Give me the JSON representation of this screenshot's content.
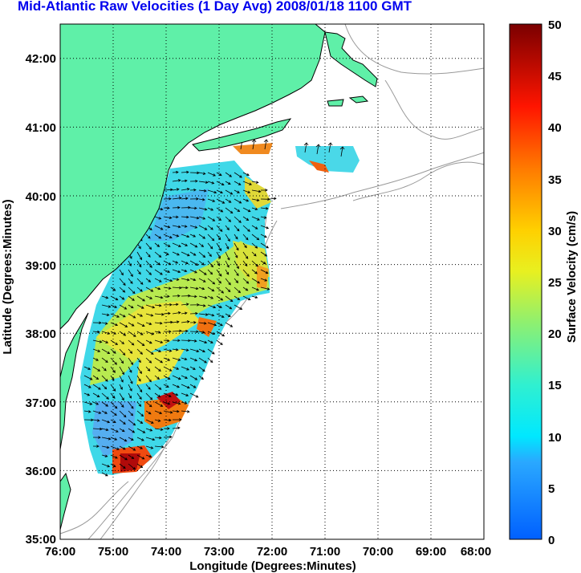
{
  "title": "Mid-Atlantic Raw Velocities (1 Day Avg) 2008/01/18 1100 GMT",
  "map": {
    "xlabel": "Longitude (Degrees:Minutes)",
    "ylabel": "Latitude (Degrees:Minutes)",
    "x_ticks": [
      "76:00",
      "75:00",
      "74:00",
      "73:00",
      "72:00",
      "71:00",
      "70:00",
      "69:00",
      "68:00"
    ],
    "y_ticks": [
      "42:00",
      "41:00",
      "40:00",
      "39:00",
      "38:00",
      "37:00",
      "36:00",
      "35:00"
    ],
    "lon_range": [
      -76,
      -68
    ],
    "lat_range": [
      35,
      42.5
    ],
    "grid": true,
    "land_color": "#5ff0a8",
    "coast_line_color": "#000000",
    "bathymetry_color": "#999999"
  },
  "colorbar": {
    "label": "Surface Velocity (cm/s)",
    "ticks": [
      "0",
      "5",
      "10",
      "15",
      "20",
      "25",
      "30",
      "35",
      "40",
      "45",
      "50"
    ],
    "range": [
      0,
      50
    ],
    "colormap": "jet"
  }
}
